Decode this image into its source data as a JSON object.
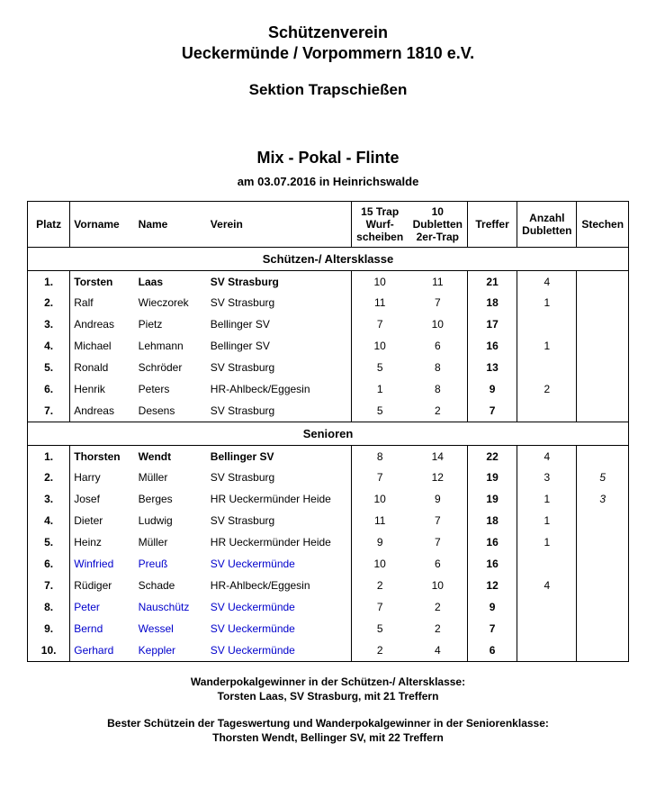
{
  "header": {
    "org_line1": "Schützenverein",
    "org_line2": "Ueckermünde / Vorpommern 1810 e.V.",
    "section": "Sektion Trapschießen"
  },
  "event": {
    "title": "Mix - Pokal - Flinte",
    "subtitle": "am  03.07.2016  in  Heinrichswalde"
  },
  "columns": {
    "platz": "Platz",
    "vorname": "Vorname",
    "name": "Name",
    "verein": "Verein",
    "trap": "15 Trap Wurf-scheiben",
    "dubletten": "10 Dubletten 2er-Trap",
    "treffer": "Treffer",
    "anzahl": "Anzahl Dubletten",
    "stechen": "Stechen"
  },
  "groups": [
    {
      "title": "Schützen-/ Altersklasse",
      "rows": [
        {
          "platz": "1.",
          "vor": "Torsten",
          "name": "Laas",
          "verein": "SV Strasburg",
          "trap": "10",
          "dub": "11",
          "tref": "21",
          "anz": "4",
          "stech": "",
          "bold": true,
          "blue": false
        },
        {
          "platz": "2.",
          "vor": "Ralf",
          "name": "Wieczorek",
          "verein": "SV Strasburg",
          "trap": "11",
          "dub": "7",
          "tref": "18",
          "anz": "1",
          "stech": "",
          "bold": false,
          "blue": false
        },
        {
          "platz": "3.",
          "vor": "Andreas",
          "name": "Pietz",
          "verein": "Bellinger SV",
          "trap": "7",
          "dub": "10",
          "tref": "17",
          "anz": "",
          "stech": "",
          "bold": false,
          "blue": false
        },
        {
          "platz": "4.",
          "vor": "Michael",
          "name": "Lehmann",
          "verein": "Bellinger SV",
          "trap": "10",
          "dub": "6",
          "tref": "16",
          "anz": "1",
          "stech": "",
          "bold": false,
          "blue": false
        },
        {
          "platz": "5.",
          "vor": "Ronald",
          "name": "Schröder",
          "verein": "SV Strasburg",
          "trap": "5",
          "dub": "8",
          "tref": "13",
          "anz": "",
          "stech": "",
          "bold": false,
          "blue": false
        },
        {
          "platz": "6.",
          "vor": "Henrik",
          "name": "Peters",
          "verein": "HR-Ahlbeck/Eggesin",
          "trap": "1",
          "dub": "8",
          "tref": "9",
          "anz": "2",
          "stech": "",
          "bold": false,
          "blue": false
        },
        {
          "platz": "7.",
          "vor": "Andreas",
          "name": "Desens",
          "verein": "SV Strasburg",
          "trap": "5",
          "dub": "2",
          "tref": "7",
          "anz": "",
          "stech": "",
          "bold": false,
          "blue": false
        }
      ]
    },
    {
      "title": "Senioren",
      "rows": [
        {
          "platz": "1.",
          "vor": "Thorsten",
          "name": "Wendt",
          "verein": "Bellinger SV",
          "trap": "8",
          "dub": "14",
          "tref": "22",
          "anz": "4",
          "stech": "",
          "bold": true,
          "blue": false
        },
        {
          "platz": "2.",
          "vor": "Harry",
          "name": "Müller",
          "verein": "SV Strasburg",
          "trap": "7",
          "dub": "12",
          "tref": "19",
          "anz": "3",
          "stech": "5",
          "bold": false,
          "blue": false
        },
        {
          "platz": "3.",
          "vor": "Josef",
          "name": "Berges",
          "verein": "HR Ueckermünder Heide",
          "trap": "10",
          "dub": "9",
          "tref": "19",
          "anz": "1",
          "stech": "3",
          "bold": false,
          "blue": false
        },
        {
          "platz": "4.",
          "vor": "Dieter",
          "name": "Ludwig",
          "verein": "SV Strasburg",
          "trap": "11",
          "dub": "7",
          "tref": "18",
          "anz": "1",
          "stech": "",
          "bold": false,
          "blue": false
        },
        {
          "platz": "5.",
          "vor": "Heinz",
          "name": "Müller",
          "verein": "HR Ueckermünder Heide",
          "trap": "9",
          "dub": "7",
          "tref": "16",
          "anz": "1",
          "stech": "",
          "bold": false,
          "blue": false
        },
        {
          "platz": "6.",
          "vor": "Winfried",
          "name": "Preuß",
          "verein": "SV Ueckermünde",
          "trap": "10",
          "dub": "6",
          "tref": "16",
          "anz": "",
          "stech": "",
          "bold": false,
          "blue": true
        },
        {
          "platz": "7.",
          "vor": "Rüdiger",
          "name": "Schade",
          "verein": "HR-Ahlbeck/Eggesin",
          "trap": "2",
          "dub": "10",
          "tref": "12",
          "anz": "4",
          "stech": "",
          "bold": false,
          "blue": false
        },
        {
          "platz": "8.",
          "vor": "Peter",
          "name": "Nauschütz",
          "verein": "SV Ueckermünde",
          "trap": "7",
          "dub": "2",
          "tref": "9",
          "anz": "",
          "stech": "",
          "bold": false,
          "blue": true
        },
        {
          "platz": "9.",
          "vor": "Bernd",
          "name": "Wessel",
          "verein": "SV Ueckermünde",
          "trap": "5",
          "dub": "2",
          "tref": "7",
          "anz": "",
          "stech": "",
          "bold": false,
          "blue": true
        },
        {
          "platz": "10.",
          "vor": "Gerhard",
          "name": "Keppler",
          "verein": "SV Ueckermünde",
          "trap": "2",
          "dub": "4",
          "tref": "6",
          "anz": "",
          "stech": "",
          "bold": false,
          "blue": true
        }
      ]
    }
  ],
  "footer": {
    "line1": "Wanderpokalgewinner in der Schützen-/ Altersklasse:",
    "line2": "Torsten Laas, SV Strasburg, mit 21 Treffern",
    "line3": "Bester Schützein der Tageswertung und Wanderpokalgewinner in der Seniorenklasse:",
    "line4": "Thorsten Wendt, Bellinger SV, mit 22 Treffern"
  }
}
